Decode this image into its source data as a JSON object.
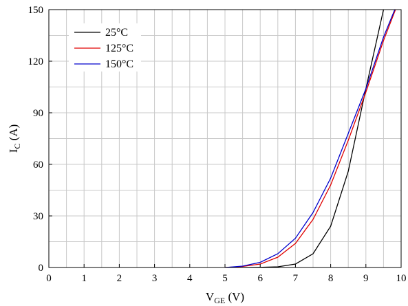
{
  "chart_data": {
    "type": "line",
    "xlabel": {
      "main": "V",
      "sub": "GE",
      "unit": " (V)"
    },
    "ylabel": {
      "main": "I",
      "sub": "C",
      "unit": " (A)"
    },
    "xlim": [
      0,
      10
    ],
    "ylim": [
      0,
      150
    ],
    "x_ticks": [
      0,
      1,
      2,
      3,
      4,
      5,
      6,
      7,
      8,
      9,
      10
    ],
    "y_ticks": [
      0,
      30,
      60,
      90,
      120,
      150
    ],
    "x_tick_labels": [
      "0",
      "1",
      "2",
      "3",
      "4",
      "5",
      "6",
      "7",
      "8",
      "9",
      "10"
    ],
    "y_tick_labels": [
      "0",
      "30",
      "60",
      "90",
      "120",
      "150"
    ],
    "grid": {
      "x_step": 0.5,
      "y_step": 15
    },
    "legend_position": "top-left",
    "series": [
      {
        "name": "25°C",
        "color": "#000000",
        "points": [
          [
            5.0,
            0
          ],
          [
            5.5,
            0
          ],
          [
            6.0,
            0.1
          ],
          [
            6.5,
            0.4
          ],
          [
            7.0,
            2
          ],
          [
            7.5,
            8
          ],
          [
            8.0,
            24
          ],
          [
            8.5,
            56
          ],
          [
            9.0,
            104
          ],
          [
            9.5,
            150
          ]
        ]
      },
      {
        "name": "125°C",
        "color": "#e00000",
        "points": [
          [
            5.0,
            0
          ],
          [
            5.5,
            0.6
          ],
          [
            6.0,
            2
          ],
          [
            6.5,
            6
          ],
          [
            7.0,
            14
          ],
          [
            7.5,
            28
          ],
          [
            8.0,
            48
          ],
          [
            8.5,
            74
          ],
          [
            9.0,
            102
          ],
          [
            9.5,
            132
          ],
          [
            9.84,
            150
          ]
        ]
      },
      {
        "name": "150°C",
        "color": "#0000cc",
        "points": [
          [
            5.0,
            0
          ],
          [
            5.5,
            0.8
          ],
          [
            6.0,
            3
          ],
          [
            6.5,
            8
          ],
          [
            7.0,
            17
          ],
          [
            7.5,
            32
          ],
          [
            8.0,
            52
          ],
          [
            8.5,
            78
          ],
          [
            9.0,
            104
          ],
          [
            9.5,
            134
          ],
          [
            9.82,
            150
          ]
        ]
      }
    ]
  }
}
